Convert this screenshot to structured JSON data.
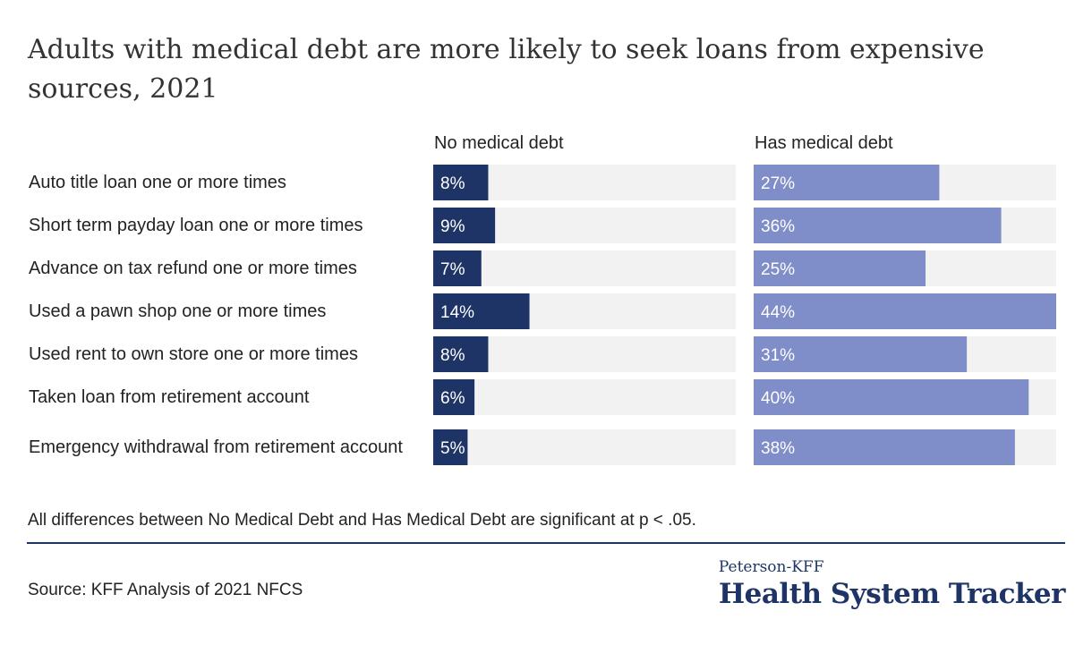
{
  "title": "Adults with medical debt are more likely to seek loans from expensive sources, 2021",
  "note": "All differences between No Medical Debt and Has Medical Debt are significant at p < .05.",
  "source": "Source: KFF Analysis of 2021 NFCS",
  "logo": {
    "top": "Peterson-KFF",
    "main": "Health System Tracker"
  },
  "colors": {
    "no_debt": "#1e3466",
    "has_debt": "#7f8dc9",
    "track": "#f2f2f2",
    "rule": "#1e3466"
  },
  "chart_data": {
    "type": "bar",
    "orientation": "horizontal",
    "categories": [
      "Auto title loan one or more times",
      "Short term payday loan one or more times",
      "Advance on tax refund one or more times",
      "Used a pawn shop one or more times",
      "Used rent to own store one or more times",
      "Taken loan from retirement account",
      "Emergency withdrawal from retirement account"
    ],
    "series": [
      {
        "name": "No medical debt",
        "values": [
          8,
          9,
          7,
          14,
          8,
          6,
          5
        ],
        "labels": [
          "8%",
          "9%",
          "7%",
          "14%",
          "8%",
          "6%",
          "5%"
        ]
      },
      {
        "name": "Has medical debt",
        "values": [
          27,
          36,
          25,
          44,
          31,
          40,
          38
        ],
        "labels": [
          "27%",
          "36%",
          "25%",
          "44%",
          "31%",
          "40%",
          "38%"
        ]
      }
    ],
    "xlim": [
      0,
      44
    ],
    "grid": false,
    "legend": "panel headers above each column"
  }
}
